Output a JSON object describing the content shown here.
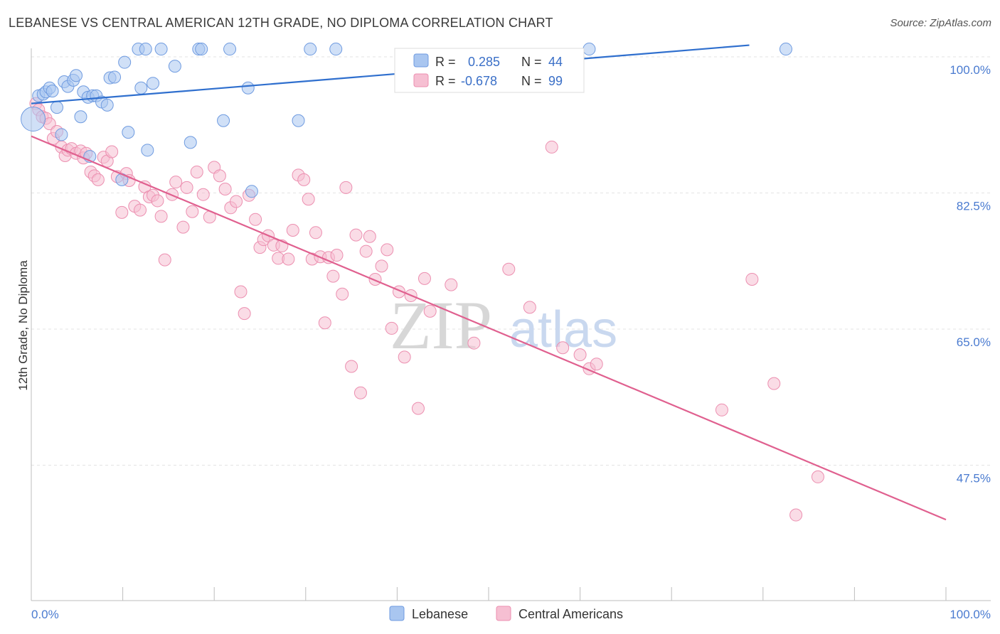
{
  "header": {
    "title": "LEBANESE VS CENTRAL AMERICAN 12TH GRADE, NO DIPLOMA CORRELATION CHART",
    "source": "Source: ZipAtlas.com"
  },
  "watermark": {
    "zip": "ZIP",
    "atlas": "atlas"
  },
  "legend": {
    "row1": {
      "r_label": "R =",
      "r_value": "0.285",
      "n_label": "N =",
      "n_value": "44"
    },
    "row2": {
      "r_label": "R =",
      "r_value": "-0.678",
      "n_label": "N =",
      "n_value": "99"
    }
  },
  "bottom_legend": {
    "series1": "Lebanese",
    "series2": "Central Americans"
  },
  "colors": {
    "blue_fill": "#a9c6f0",
    "blue_stroke": "#6f9be0",
    "blue_line": "#2f6fce",
    "pink_fill": "#f6bfd2",
    "pink_stroke": "#ec8fb0",
    "pink_line": "#e0608f",
    "tick_text": "#4a7bd0",
    "grid": "#e3e3e3"
  },
  "chart_data": {
    "type": "scatter",
    "title": "LEBANESE VS CENTRAL AMERICAN 12TH GRADE, NO DIPLOMA CORRELATION CHART",
    "xlabel": "",
    "ylabel": "12th Grade, No Diploma",
    "xlim": [
      0,
      100
    ],
    "ylim": [
      30,
      102
    ],
    "x_tick_labels": [
      "0.0%",
      "100.0%"
    ],
    "y_ticks": [
      100,
      82.5,
      65,
      47.5
    ],
    "y_tick_labels": [
      "100.0%",
      "82.5%",
      "65.0%",
      "47.5%"
    ],
    "grid": true,
    "legend_placement": "top-center",
    "series": [
      {
        "name": "Lebanese",
        "r": 0.285,
        "n": 44,
        "trend": {
          "x": [
            0,
            78.5
          ],
          "y": [
            94.0,
            101.5
          ]
        },
        "points": [
          {
            "x": 0.2,
            "y": 92.0,
            "big": true
          },
          {
            "x": 0.8,
            "y": 95.0
          },
          {
            "x": 1.3,
            "y": 95.2
          },
          {
            "x": 1.6,
            "y": 95.5
          },
          {
            "x": 2.0,
            "y": 96.0
          },
          {
            "x": 2.3,
            "y": 95.6
          },
          {
            "x": 2.8,
            "y": 93.5
          },
          {
            "x": 3.3,
            "y": 90.0
          },
          {
            "x": 3.6,
            "y": 96.8
          },
          {
            "x": 4.0,
            "y": 96.2
          },
          {
            "x": 4.6,
            "y": 97.0
          },
          {
            "x": 4.9,
            "y": 97.6
          },
          {
            "x": 5.4,
            "y": 92.3
          },
          {
            "x": 5.7,
            "y": 95.5
          },
          {
            "x": 6.2,
            "y": 94.8
          },
          {
            "x": 6.4,
            "y": 87.2
          },
          {
            "x": 6.7,
            "y": 95.0
          },
          {
            "x": 7.1,
            "y": 95.0
          },
          {
            "x": 7.7,
            "y": 94.2
          },
          {
            "x": 8.3,
            "y": 93.8
          },
          {
            "x": 8.6,
            "y": 97.3
          },
          {
            "x": 9.1,
            "y": 97.4
          },
          {
            "x": 9.9,
            "y": 84.2
          },
          {
            "x": 10.2,
            "y": 99.3
          },
          {
            "x": 10.6,
            "y": 90.3
          },
          {
            "x": 11.7,
            "y": 101.0
          },
          {
            "x": 12.0,
            "y": 96.0
          },
          {
            "x": 12.5,
            "y": 101.0
          },
          {
            "x": 12.7,
            "y": 88.0
          },
          {
            "x": 13.3,
            "y": 96.6
          },
          {
            "x": 14.2,
            "y": 101.0
          },
          {
            "x": 15.7,
            "y": 98.8
          },
          {
            "x": 17.4,
            "y": 89.0
          },
          {
            "x": 18.3,
            "y": 101.0
          },
          {
            "x": 18.6,
            "y": 101.0
          },
          {
            "x": 21.0,
            "y": 91.8
          },
          {
            "x": 21.7,
            "y": 101.0
          },
          {
            "x": 23.7,
            "y": 96.0
          },
          {
            "x": 24.1,
            "y": 82.7
          },
          {
            "x": 29.2,
            "y": 91.8
          },
          {
            "x": 30.5,
            "y": 101.0
          },
          {
            "x": 33.3,
            "y": 101.0
          },
          {
            "x": 61.0,
            "y": 101.0
          },
          {
            "x": 82.5,
            "y": 101.0
          }
        ]
      },
      {
        "name": "Central Americans",
        "r": -0.678,
        "n": 99,
        "trend": {
          "x": [
            0,
            100
          ],
          "y": [
            89.8,
            40.5
          ]
        },
        "points": [
          {
            "x": 0.5,
            "y": 94.0
          },
          {
            "x": 0.8,
            "y": 93.2
          },
          {
            "x": 1.2,
            "y": 92.3
          },
          {
            "x": 1.6,
            "y": 92.1
          },
          {
            "x": 2.0,
            "y": 91.4
          },
          {
            "x": 2.4,
            "y": 89.5
          },
          {
            "x": 2.8,
            "y": 90.4
          },
          {
            "x": 3.3,
            "y": 88.4
          },
          {
            "x": 3.7,
            "y": 87.3
          },
          {
            "x": 4.0,
            "y": 88.0
          },
          {
            "x": 4.4,
            "y": 88.2
          },
          {
            "x": 4.9,
            "y": 87.6
          },
          {
            "x": 5.4,
            "y": 87.9
          },
          {
            "x": 5.7,
            "y": 87.0
          },
          {
            "x": 6.0,
            "y": 87.6
          },
          {
            "x": 6.5,
            "y": 85.2
          },
          {
            "x": 6.9,
            "y": 84.7
          },
          {
            "x": 7.3,
            "y": 84.2
          },
          {
            "x": 7.9,
            "y": 87.1
          },
          {
            "x": 8.3,
            "y": 86.6
          },
          {
            "x": 8.8,
            "y": 87.8
          },
          {
            "x": 9.4,
            "y": 84.6
          },
          {
            "x": 9.9,
            "y": 80.0
          },
          {
            "x": 10.4,
            "y": 85.0
          },
          {
            "x": 10.7,
            "y": 84.1
          },
          {
            "x": 11.3,
            "y": 80.8
          },
          {
            "x": 11.9,
            "y": 80.3
          },
          {
            "x": 12.4,
            "y": 83.3
          },
          {
            "x": 12.9,
            "y": 82.0
          },
          {
            "x": 13.3,
            "y": 82.2
          },
          {
            "x": 13.8,
            "y": 81.5
          },
          {
            "x": 14.2,
            "y": 79.5
          },
          {
            "x": 14.6,
            "y": 73.9
          },
          {
            "x": 15.4,
            "y": 82.3
          },
          {
            "x": 15.8,
            "y": 83.9
          },
          {
            "x": 16.6,
            "y": 78.1
          },
          {
            "x": 17.0,
            "y": 83.2
          },
          {
            "x": 17.6,
            "y": 80.1
          },
          {
            "x": 18.1,
            "y": 85.2
          },
          {
            "x": 18.8,
            "y": 82.3
          },
          {
            "x": 19.5,
            "y": 79.4
          },
          {
            "x": 20.0,
            "y": 85.8
          },
          {
            "x": 20.6,
            "y": 84.7
          },
          {
            "x": 21.2,
            "y": 83.0
          },
          {
            "x": 21.8,
            "y": 80.6
          },
          {
            "x": 22.4,
            "y": 81.4
          },
          {
            "x": 22.9,
            "y": 69.8
          },
          {
            "x": 23.3,
            "y": 67.0
          },
          {
            "x": 23.8,
            "y": 82.2
          },
          {
            "x": 24.5,
            "y": 79.1
          },
          {
            "x": 25.0,
            "y": 75.5
          },
          {
            "x": 25.4,
            "y": 76.5
          },
          {
            "x": 25.9,
            "y": 77.0
          },
          {
            "x": 26.5,
            "y": 75.8
          },
          {
            "x": 27.0,
            "y": 74.1
          },
          {
            "x": 27.4,
            "y": 75.7
          },
          {
            "x": 28.1,
            "y": 74.0
          },
          {
            "x": 28.6,
            "y": 77.7
          },
          {
            "x": 29.2,
            "y": 84.8
          },
          {
            "x": 29.8,
            "y": 84.2
          },
          {
            "x": 30.3,
            "y": 81.7
          },
          {
            "x": 30.7,
            "y": 74.0
          },
          {
            "x": 31.1,
            "y": 77.4
          },
          {
            "x": 31.6,
            "y": 74.3
          },
          {
            "x": 32.1,
            "y": 65.8
          },
          {
            "x": 32.5,
            "y": 74.2
          },
          {
            "x": 33.0,
            "y": 71.8
          },
          {
            "x": 33.4,
            "y": 74.5
          },
          {
            "x": 34.0,
            "y": 69.5
          },
          {
            "x": 34.4,
            "y": 83.2
          },
          {
            "x": 35.0,
            "y": 60.2
          },
          {
            "x": 35.5,
            "y": 77.1
          },
          {
            "x": 36.0,
            "y": 56.8
          },
          {
            "x": 36.6,
            "y": 75.0
          },
          {
            "x": 37.0,
            "y": 76.9
          },
          {
            "x": 37.6,
            "y": 71.4
          },
          {
            "x": 38.3,
            "y": 73.1
          },
          {
            "x": 38.9,
            "y": 75.2
          },
          {
            "x": 39.4,
            "y": 65.1
          },
          {
            "x": 40.2,
            "y": 69.8
          },
          {
            "x": 40.8,
            "y": 61.4
          },
          {
            "x": 41.5,
            "y": 69.3
          },
          {
            "x": 42.3,
            "y": 54.8
          },
          {
            "x": 43.0,
            "y": 71.5
          },
          {
            "x": 43.6,
            "y": 67.3
          },
          {
            "x": 45.9,
            "y": 70.7
          },
          {
            "x": 48.4,
            "y": 63.2
          },
          {
            "x": 52.2,
            "y": 72.7
          },
          {
            "x": 54.5,
            "y": 67.8
          },
          {
            "x": 56.9,
            "y": 88.4
          },
          {
            "x": 58.1,
            "y": 62.6
          },
          {
            "x": 60.0,
            "y": 61.7
          },
          {
            "x": 61.0,
            "y": 59.9
          },
          {
            "x": 61.8,
            "y": 60.5
          },
          {
            "x": 75.5,
            "y": 54.6
          },
          {
            "x": 78.8,
            "y": 71.4
          },
          {
            "x": 81.2,
            "y": 58.0
          },
          {
            "x": 83.6,
            "y": 41.1
          },
          {
            "x": 86.0,
            "y": 46.0
          }
        ]
      }
    ]
  }
}
